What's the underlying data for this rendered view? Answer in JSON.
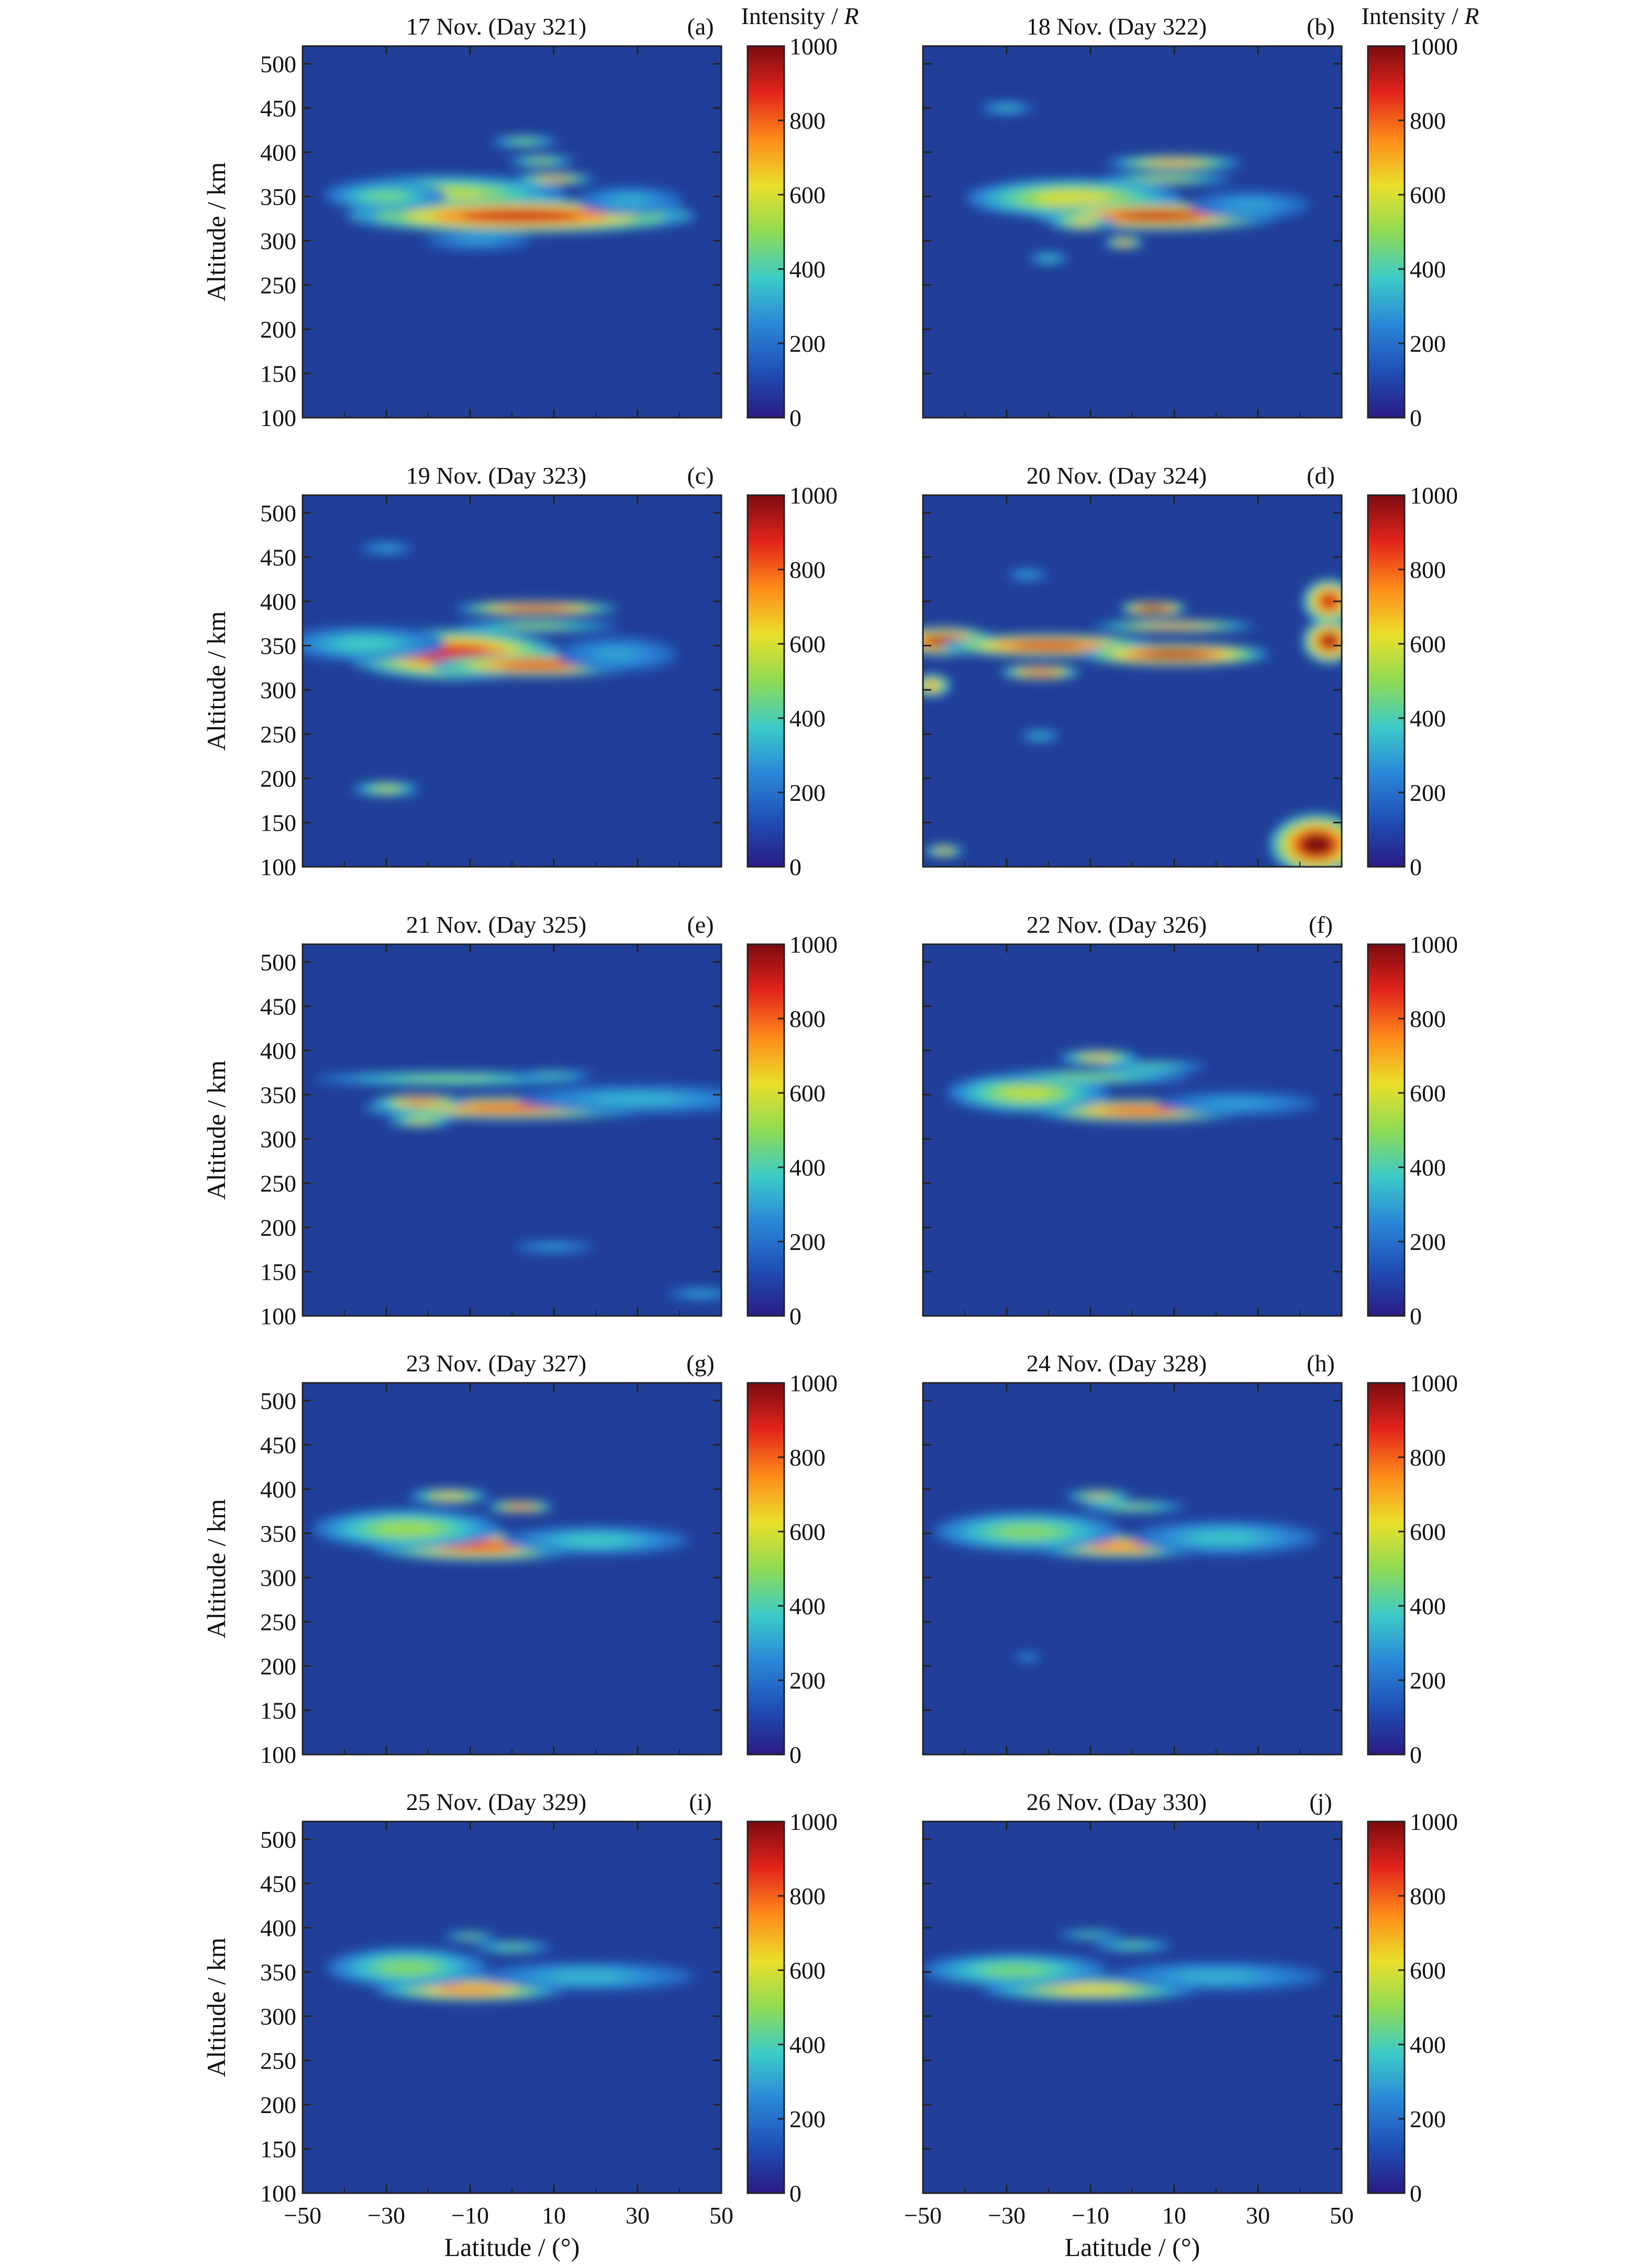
{
  "figure": {
    "ylabel": "Altitude / km",
    "xlabel": "Latitude / (°)",
    "colorbar_title": "Intensity / ",
    "colorbar_unit": "R",
    "yticks": [
      "100",
      "150",
      "200",
      "250",
      "300",
      "350",
      "400",
      "450",
      "500"
    ],
    "xticks": [
      "−50",
      "−30",
      "−10",
      "10",
      "30",
      "50"
    ],
    "cbticks": [
      "0",
      "200",
      "400",
      "600",
      "800",
      "1000"
    ],
    "colormap": [
      "#2a1c84",
      "#1f4fb5",
      "#2a86d8",
      "#3ccbc9",
      "#90db54",
      "#eadf2a",
      "#ff8a1a",
      "#e2241b",
      "#7d0b10"
    ],
    "background": "#213f98"
  },
  "chart_data": [
    {
      "type": "heatmap",
      "title": "17 Nov. (Day 321)",
      "label": "(a)",
      "xlim": [
        -50,
        50
      ],
      "ylim": [
        100,
        520
      ],
      "clim": [
        0,
        1000
      ],
      "features": [
        {
          "lat": -16,
          "alt": 352,
          "dlat": 18,
          "dalt": 14,
          "value": 560
        },
        {
          "lat": 2,
          "alt": 328,
          "dlat": 26,
          "dalt": 12,
          "value": 900
        },
        {
          "lat": -30,
          "alt": 350,
          "dlat": 9,
          "dalt": 10,
          "value": 450
        },
        {
          "lat": 10,
          "alt": 370,
          "dlat": 6,
          "dalt": 4,
          "value": 700
        },
        {
          "lat": 7,
          "alt": 390,
          "dlat": 5,
          "dalt": 4,
          "value": 520
        },
        {
          "lat": 3,
          "alt": 412,
          "dlat": 5,
          "dalt": 4,
          "value": 480
        },
        {
          "lat": 28,
          "alt": 345,
          "dlat": 8,
          "dalt": 10,
          "value": 320
        },
        {
          "lat": -8,
          "alt": 300,
          "dlat": 8,
          "dalt": 6,
          "value": 300
        }
      ]
    },
    {
      "type": "heatmap",
      "title": "18 Nov. (Day 322)",
      "label": "(b)",
      "xlim": [
        -50,
        50
      ],
      "ylim": [
        100,
        520
      ],
      "clim": [
        0,
        1000
      ],
      "features": [
        {
          "lat": -14,
          "alt": 348,
          "dlat": 16,
          "dalt": 14,
          "value": 600
        },
        {
          "lat": 6,
          "alt": 328,
          "dlat": 18,
          "dalt": 10,
          "value": 920
        },
        {
          "lat": 10,
          "alt": 388,
          "dlat": 10,
          "dalt": 5,
          "value": 700
        },
        {
          "lat": 8,
          "alt": 370,
          "dlat": 10,
          "dalt": 4,
          "value": 560
        },
        {
          "lat": -12,
          "alt": 320,
          "dlat": 5,
          "dalt": 5,
          "value": 620
        },
        {
          "lat": -2,
          "alt": 298,
          "dlat": 3,
          "dalt": 4,
          "value": 700
        },
        {
          "lat": -20,
          "alt": 280,
          "dlat": 3,
          "dalt": 4,
          "value": 380
        },
        {
          "lat": -30,
          "alt": 450,
          "dlat": 4,
          "dalt": 4,
          "value": 360
        },
        {
          "lat": 28,
          "alt": 340,
          "dlat": 9,
          "dalt": 10,
          "value": 300
        }
      ]
    },
    {
      "type": "heatmap",
      "title": "19 Nov. (Day 323)",
      "label": "(c)",
      "xlim": [
        -50,
        50
      ],
      "ylim": [
        100,
        520
      ],
      "clim": [
        0,
        1000
      ],
      "features": [
        {
          "lat": -14,
          "alt": 340,
          "dlat": 16,
          "dalt": 18,
          "value": 880
        },
        {
          "lat": 6,
          "alt": 328,
          "dlat": 16,
          "dalt": 8,
          "value": 860
        },
        {
          "lat": 6,
          "alt": 392,
          "dlat": 12,
          "dalt": 5,
          "value": 900
        },
        {
          "lat": 6,
          "alt": 372,
          "dlat": 12,
          "dalt": 4,
          "value": 520
        },
        {
          "lat": -35,
          "alt": 352,
          "dlat": 12,
          "dalt": 12,
          "value": 380
        },
        {
          "lat": -30,
          "alt": 188,
          "dlat": 5,
          "dalt": 5,
          "value": 560
        },
        {
          "lat": -30,
          "alt": 460,
          "dlat": 4,
          "dalt": 4,
          "value": 320
        },
        {
          "lat": 25,
          "alt": 340,
          "dlat": 9,
          "dalt": 12,
          "value": 300
        }
      ]
    },
    {
      "type": "heatmap",
      "title": "20 Nov. (Day 324)",
      "label": "(d)",
      "xlim": [
        -50,
        50
      ],
      "ylim": [
        100,
        520
      ],
      "clim": [
        0,
        1000
      ],
      "features": [
        {
          "lat": -45,
          "alt": 355,
          "dlat": 8,
          "dalt": 10,
          "value": 950
        },
        {
          "lat": -20,
          "alt": 350,
          "dlat": 16,
          "dalt": 8,
          "value": 900
        },
        {
          "lat": 10,
          "alt": 340,
          "dlat": 14,
          "dalt": 8,
          "value": 960
        },
        {
          "lat": 5,
          "alt": 392,
          "dlat": 5,
          "dalt": 5,
          "value": 1000
        },
        {
          "lat": 10,
          "alt": 372,
          "dlat": 12,
          "dalt": 4,
          "value": 720
        },
        {
          "lat": -22,
          "alt": 320,
          "dlat": 6,
          "dalt": 5,
          "value": 850
        },
        {
          "lat": 47,
          "alt": 355,
          "dlat": 4,
          "dalt": 16,
          "value": 950
        },
        {
          "lat": 47,
          "alt": 400,
          "dlat": 4,
          "dalt": 16,
          "value": 900
        },
        {
          "lat": 44,
          "alt": 125,
          "dlat": 7,
          "dalt": 22,
          "value": 1000
        },
        {
          "lat": -48,
          "alt": 305,
          "dlat": 3,
          "dalt": 8,
          "value": 700
        },
        {
          "lat": -45,
          "alt": 118,
          "dlat": 3,
          "dalt": 4,
          "value": 650
        },
        {
          "lat": -22,
          "alt": 248,
          "dlat": 3,
          "dalt": 4,
          "value": 350
        },
        {
          "lat": -25,
          "alt": 430,
          "dlat": 3,
          "dalt": 4,
          "value": 320
        }
      ]
    },
    {
      "type": "heatmap",
      "title": "21 Nov. (Day 325)",
      "label": "(e)",
      "xlim": [
        -50,
        50
      ],
      "ylim": [
        100,
        520
      ],
      "clim": [
        0,
        1000
      ],
      "features": [
        {
          "lat": 0,
          "alt": 335,
          "dlat": 22,
          "dalt": 8,
          "value": 820
        },
        {
          "lat": -22,
          "alt": 342,
          "dlat": 7,
          "dalt": 5,
          "value": 800
        },
        {
          "lat": -15,
          "alt": 368,
          "dlat": 20,
          "dalt": 5,
          "value": 480
        },
        {
          "lat": 10,
          "alt": 372,
          "dlat": 6,
          "dalt": 3,
          "value": 420
        },
        {
          "lat": -22,
          "alt": 320,
          "dlat": 5,
          "dalt": 4,
          "value": 600
        },
        {
          "lat": 30,
          "alt": 345,
          "dlat": 18,
          "dalt": 10,
          "value": 330
        },
        {
          "lat": 10,
          "alt": 178,
          "dlat": 6,
          "dalt": 4,
          "value": 300
        },
        {
          "lat": 45,
          "alt": 125,
          "dlat": 5,
          "dalt": 4,
          "value": 320
        }
      ]
    },
    {
      "type": "heatmap",
      "title": "22 Nov. (Day 326)",
      "label": "(f)",
      "xlim": [
        -50,
        50
      ],
      "ylim": [
        100,
        520
      ],
      "clim": [
        0,
        1000
      ],
      "features": [
        {
          "lat": 2,
          "alt": 332,
          "dlat": 16,
          "dalt": 8,
          "value": 820
        },
        {
          "lat": -25,
          "alt": 352,
          "dlat": 12,
          "dalt": 14,
          "value": 560
        },
        {
          "lat": -8,
          "alt": 392,
          "dlat": 6,
          "dalt": 5,
          "value": 650
        },
        {
          "lat": -10,
          "alt": 370,
          "dlat": 15,
          "dalt": 5,
          "value": 480
        },
        {
          "lat": 5,
          "alt": 382,
          "dlat": 8,
          "dalt": 4,
          "value": 420
        },
        {
          "lat": 25,
          "alt": 340,
          "dlat": 12,
          "dalt": 8,
          "value": 300
        }
      ]
    },
    {
      "type": "heatmap",
      "title": "23 Nov. (Day 327)",
      "label": "(g)",
      "xlim": [
        -50,
        50
      ],
      "ylim": [
        100,
        520
      ],
      "clim": [
        0,
        1000
      ],
      "features": [
        {
          "lat": -8,
          "alt": 335,
          "dlat": 16,
          "dalt": 10,
          "value": 820
        },
        {
          "lat": -25,
          "alt": 355,
          "dlat": 14,
          "dalt": 14,
          "value": 520
        },
        {
          "lat": -15,
          "alt": 392,
          "dlat": 6,
          "dalt": 5,
          "value": 650
        },
        {
          "lat": 2,
          "alt": 380,
          "dlat": 5,
          "dalt": 4,
          "value": 780
        },
        {
          "lat": 20,
          "alt": 342,
          "dlat": 14,
          "dalt": 10,
          "value": 380
        }
      ]
    },
    {
      "type": "heatmap",
      "title": "24 Nov. (Day 328)",
      "label": "(h)",
      "xlim": [
        -50,
        50
      ],
      "ylim": [
        100,
        520
      ],
      "clim": [
        0,
        1000
      ],
      "features": [
        {
          "lat": -3,
          "alt": 335,
          "dlat": 14,
          "dalt": 8,
          "value": 760
        },
        {
          "lat": -25,
          "alt": 352,
          "dlat": 14,
          "dalt": 14,
          "value": 480
        },
        {
          "lat": -8,
          "alt": 392,
          "dlat": 5,
          "dalt": 4,
          "value": 600
        },
        {
          "lat": 0,
          "alt": 380,
          "dlat": 8,
          "dalt": 4,
          "value": 500
        },
        {
          "lat": 22,
          "alt": 345,
          "dlat": 14,
          "dalt": 12,
          "value": 360
        },
        {
          "lat": -25,
          "alt": 210,
          "dlat": 2,
          "dalt": 3,
          "value": 300
        }
      ]
    },
    {
      "type": "heatmap",
      "title": "25 Nov. (Day 329)",
      "label": "(i)",
      "xlim": [
        -50,
        50
      ],
      "ylim": [
        100,
        520
      ],
      "clim": [
        0,
        1000
      ],
      "features": [
        {
          "lat": -10,
          "alt": 330,
          "dlat": 14,
          "dalt": 8,
          "value": 760
        },
        {
          "lat": -25,
          "alt": 355,
          "dlat": 12,
          "dalt": 14,
          "value": 480
        },
        {
          "lat": -10,
          "alt": 390,
          "dlat": 4,
          "dalt": 3,
          "value": 480
        },
        {
          "lat": 0,
          "alt": 378,
          "dlat": 6,
          "dalt": 4,
          "value": 450
        },
        {
          "lat": 18,
          "alt": 345,
          "dlat": 16,
          "dalt": 10,
          "value": 340
        }
      ]
    },
    {
      "type": "heatmap",
      "title": "26 Nov. (Day 330)",
      "label": "(j)",
      "xlim": [
        -50,
        50
      ],
      "ylim": [
        100,
        520
      ],
      "clim": [
        0,
        1000
      ],
      "features": [
        {
          "lat": -10,
          "alt": 330,
          "dlat": 16,
          "dalt": 8,
          "value": 640
        },
        {
          "lat": -28,
          "alt": 352,
          "dlat": 14,
          "dalt": 12,
          "value": 460
        },
        {
          "lat": -10,
          "alt": 392,
          "dlat": 5,
          "dalt": 3,
          "value": 420
        },
        {
          "lat": 0,
          "alt": 380,
          "dlat": 6,
          "dalt": 4,
          "value": 430
        },
        {
          "lat": 20,
          "alt": 345,
          "dlat": 16,
          "dalt": 10,
          "value": 330
        }
      ]
    }
  ]
}
